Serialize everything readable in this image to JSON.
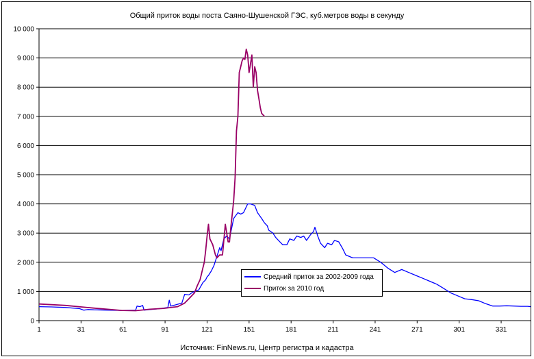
{
  "chart_data": {
    "type": "line",
    "title": "Общий приток воды поста Саяно-Шушенской ГЭС, куб.метров воды в секунду",
    "source": "Источник: FinNews.ru, Центр регистра и кадастра",
    "xlim": [
      1,
      352
    ],
    "ylim": [
      0,
      10000
    ],
    "x_ticks": [
      1,
      31,
      61,
      91,
      121,
      151,
      181,
      211,
      241,
      271,
      301,
      331
    ],
    "y_ticks": [
      0,
      1000,
      2000,
      3000,
      4000,
      5000,
      6000,
      7000,
      8000,
      9000,
      10000
    ],
    "y_tick_labels": [
      "0",
      "1 000",
      "2 000",
      "3 000",
      "4 000",
      "5 000",
      "6 000",
      "7 000",
      "8 000",
      "9 000",
      "10 000"
    ],
    "grid": true,
    "legend_position": "bottom-center",
    "series": [
      {
        "name": "Средний приток за 2002-2009 года",
        "color": "#0000FF",
        "x": [
          1,
          10,
          20,
          30,
          33,
          36,
          40,
          50,
          60,
          70,
          71,
          73,
          75,
          76,
          80,
          85,
          90,
          93,
          94,
          95,
          97,
          100,
          103,
          105,
          108,
          110,
          112,
          115,
          118,
          120,
          121,
          122,
          124,
          126,
          128,
          130,
          131,
          133,
          135,
          137,
          140,
          143,
          145,
          147,
          150,
          152,
          155,
          157,
          160,
          162,
          164,
          165,
          168,
          170,
          172,
          175,
          178,
          180,
          183,
          185,
          188,
          190,
          192,
          195,
          197,
          198,
          200,
          202,
          205,
          207,
          210,
          212,
          215,
          218,
          220,
          225,
          230,
          235,
          240,
          245,
          250,
          255,
          260,
          265,
          270,
          275,
          280,
          285,
          290,
          295,
          300,
          305,
          310,
          315,
          320,
          325,
          330,
          335,
          340,
          345,
          350,
          352
        ],
        "y": [
          480,
          470,
          450,
          410,
          360,
          380,
          370,
          360,
          350,
          360,
          500,
          480,
          520,
          360,
          380,
          400,
          430,
          450,
          700,
          500,
          520,
          560,
          600,
          900,
          880,
          950,
          1000,
          1050,
          1300,
          1400,
          1500,
          1550,
          1700,
          1900,
          2200,
          2500,
          2400,
          2800,
          2900,
          2800,
          3500,
          3700,
          3650,
          3700,
          4000,
          4000,
          3950,
          3700,
          3500,
          3350,
          3250,
          3100,
          3000,
          2850,
          2750,
          2600,
          2600,
          2800,
          2750,
          2900,
          2850,
          2900,
          2750,
          2950,
          3050,
          3200,
          2900,
          2650,
          2500,
          2650,
          2600,
          2750,
          2700,
          2450,
          2250,
          2150,
          2150,
          2150,
          2150,
          2000,
          1800,
          1650,
          1750,
          1650,
          1550,
          1450,
          1350,
          1250,
          1100,
          950,
          850,
          750,
          720,
          680,
          580,
          500,
          500,
          510,
          500,
          490,
          490,
          480
        ]
      },
      {
        "name": "Приток за 2010 год",
        "color": "#990066",
        "x": [
          1,
          20,
          40,
          60,
          70,
          80,
          90,
          100,
          105,
          108,
          110,
          112,
          114,
          116,
          118,
          119,
          120,
          121,
          122,
          123,
          125,
          127,
          128,
          130,
          132,
          134,
          136,
          137,
          138,
          140,
          141,
          142,
          143,
          144,
          145,
          146,
          147,
          148,
          149,
          150,
          151,
          152,
          153,
          154,
          155,
          156,
          157,
          158,
          159,
          160,
          161,
          162
        ],
        "y": [
          570,
          520,
          430,
          350,
          340,
          390,
          420,
          480,
          600,
          750,
          850,
          950,
          1200,
          1400,
          1800,
          2000,
          2400,
          2900,
          3300,
          2800,
          2600,
          2250,
          2150,
          2250,
          2250,
          3300,
          2700,
          2700,
          3200,
          4100,
          4900,
          6500,
          7000,
          8500,
          8700,
          8900,
          9000,
          8950,
          9300,
          9100,
          8500,
          8800,
          9100,
          8000,
          8700,
          8500,
          7900,
          7600,
          7300,
          7100,
          7050,
          7000
        ]
      }
    ]
  }
}
